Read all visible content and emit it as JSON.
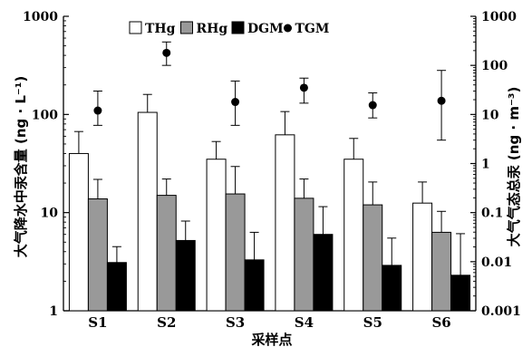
{
  "chart_data": {
    "type": "bar",
    "xlabel": "采样点",
    "ylabel_left": "大气降水中汞含量 (ng · L⁻¹)",
    "ylabel_right": "大气气态总汞 (ng · m⁻³)",
    "yscale": "log",
    "ylim_left": [
      1,
      1000
    ],
    "ylim_right": [
      0.001,
      1000
    ],
    "yticks_left": [
      "1",
      "10",
      "100",
      "1000"
    ],
    "yticks_right": [
      "0.001",
      "0.01",
      "0.1",
      "1",
      "10",
      "100",
      "1000"
    ],
    "legend_position": "top",
    "categories": [
      "S1",
      "S2",
      "S3",
      "S4",
      "S5",
      "S6"
    ],
    "series": [
      {
        "name": "THg",
        "axis": "left",
        "kind": "bar",
        "color": "#ffffff",
        "values": [
          40,
          105,
          35,
          62,
          35,
          12.5
        ],
        "errors": [
          27,
          55,
          18,
          45,
          22,
          8
        ]
      },
      {
        "name": "RHg",
        "axis": "left",
        "kind": "bar",
        "color": "#999999",
        "values": [
          13.8,
          15,
          15.5,
          14,
          12,
          6.3
        ],
        "errors": [
          8,
          7,
          14,
          8,
          8.5,
          4
        ]
      },
      {
        "name": "DGM",
        "axis": "left",
        "kind": "bar",
        "color": "#000000",
        "values": [
          3.1,
          5.2,
          3.3,
          6,
          2.9,
          2.3
        ],
        "errors": [
          1.4,
          3,
          3,
          5.5,
          2.6,
          3.8
        ]
      },
      {
        "name": "TGM",
        "axis": "right",
        "kind": "point",
        "color": "#000000",
        "values": [
          12,
          180,
          18,
          35,
          15.5,
          19
        ],
        "errors_low": [
          6,
          80,
          12,
          18,
          7,
          16
        ],
        "errors_high": [
          18,
          120,
          30,
          20,
          12,
          60
        ]
      }
    ]
  }
}
